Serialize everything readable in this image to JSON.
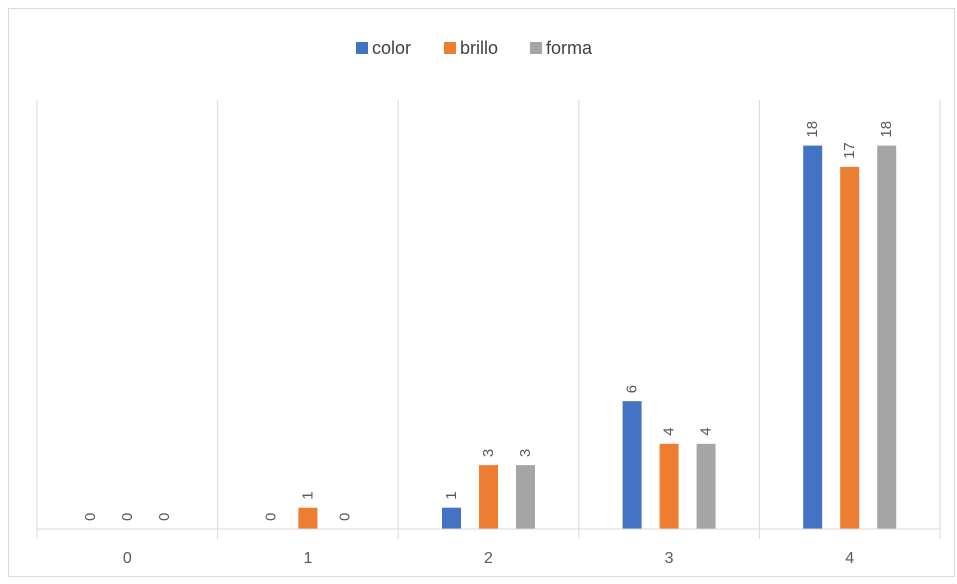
{
  "chart_data": {
    "type": "bar",
    "categories": [
      "0",
      "1",
      "2",
      "3",
      "4"
    ],
    "series": [
      {
        "name": "color",
        "color": "#4472C4",
        "values": [
          0,
          0,
          1,
          6,
          18
        ]
      },
      {
        "name": "brillo",
        "color": "#ED7D31",
        "values": [
          0,
          1,
          3,
          4,
          17
        ]
      },
      {
        "name": "forma",
        "color": "#A5A5A5",
        "values": [
          0,
          0,
          3,
          4,
          18
        ]
      }
    ],
    "ylim": [
      0,
      20
    ],
    "legend_position": "top",
    "grid": "vertical category separators",
    "data_labels": true
  }
}
